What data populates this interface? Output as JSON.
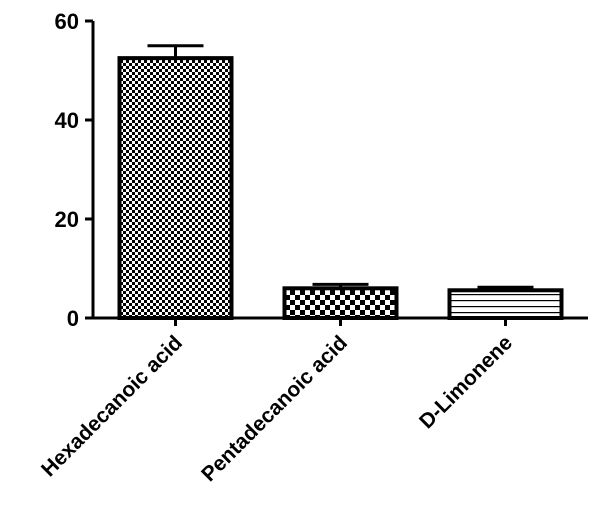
{
  "chart_data": {
    "type": "bar",
    "title": "",
    "xlabel": "",
    "ylabel": "",
    "categories": [
      "Hexadecanoic acid",
      "Pentadecanoic acid",
      "D-Limonene"
    ],
    "values": [
      52.5,
      6.0,
      5.6
    ],
    "errors": [
      2.5,
      0.8,
      0.6
    ],
    "ylim": [
      0,
      60
    ],
    "yticks": [
      0,
      20,
      40,
      60
    ],
    "grid": false,
    "legend": "none",
    "patterns": [
      "fine-checker",
      "coarse-checker",
      "horizontal-stripes"
    ],
    "colors": {
      "bar_fill": "#ffffff",
      "pattern": "#000000",
      "axis": "#000000"
    }
  }
}
